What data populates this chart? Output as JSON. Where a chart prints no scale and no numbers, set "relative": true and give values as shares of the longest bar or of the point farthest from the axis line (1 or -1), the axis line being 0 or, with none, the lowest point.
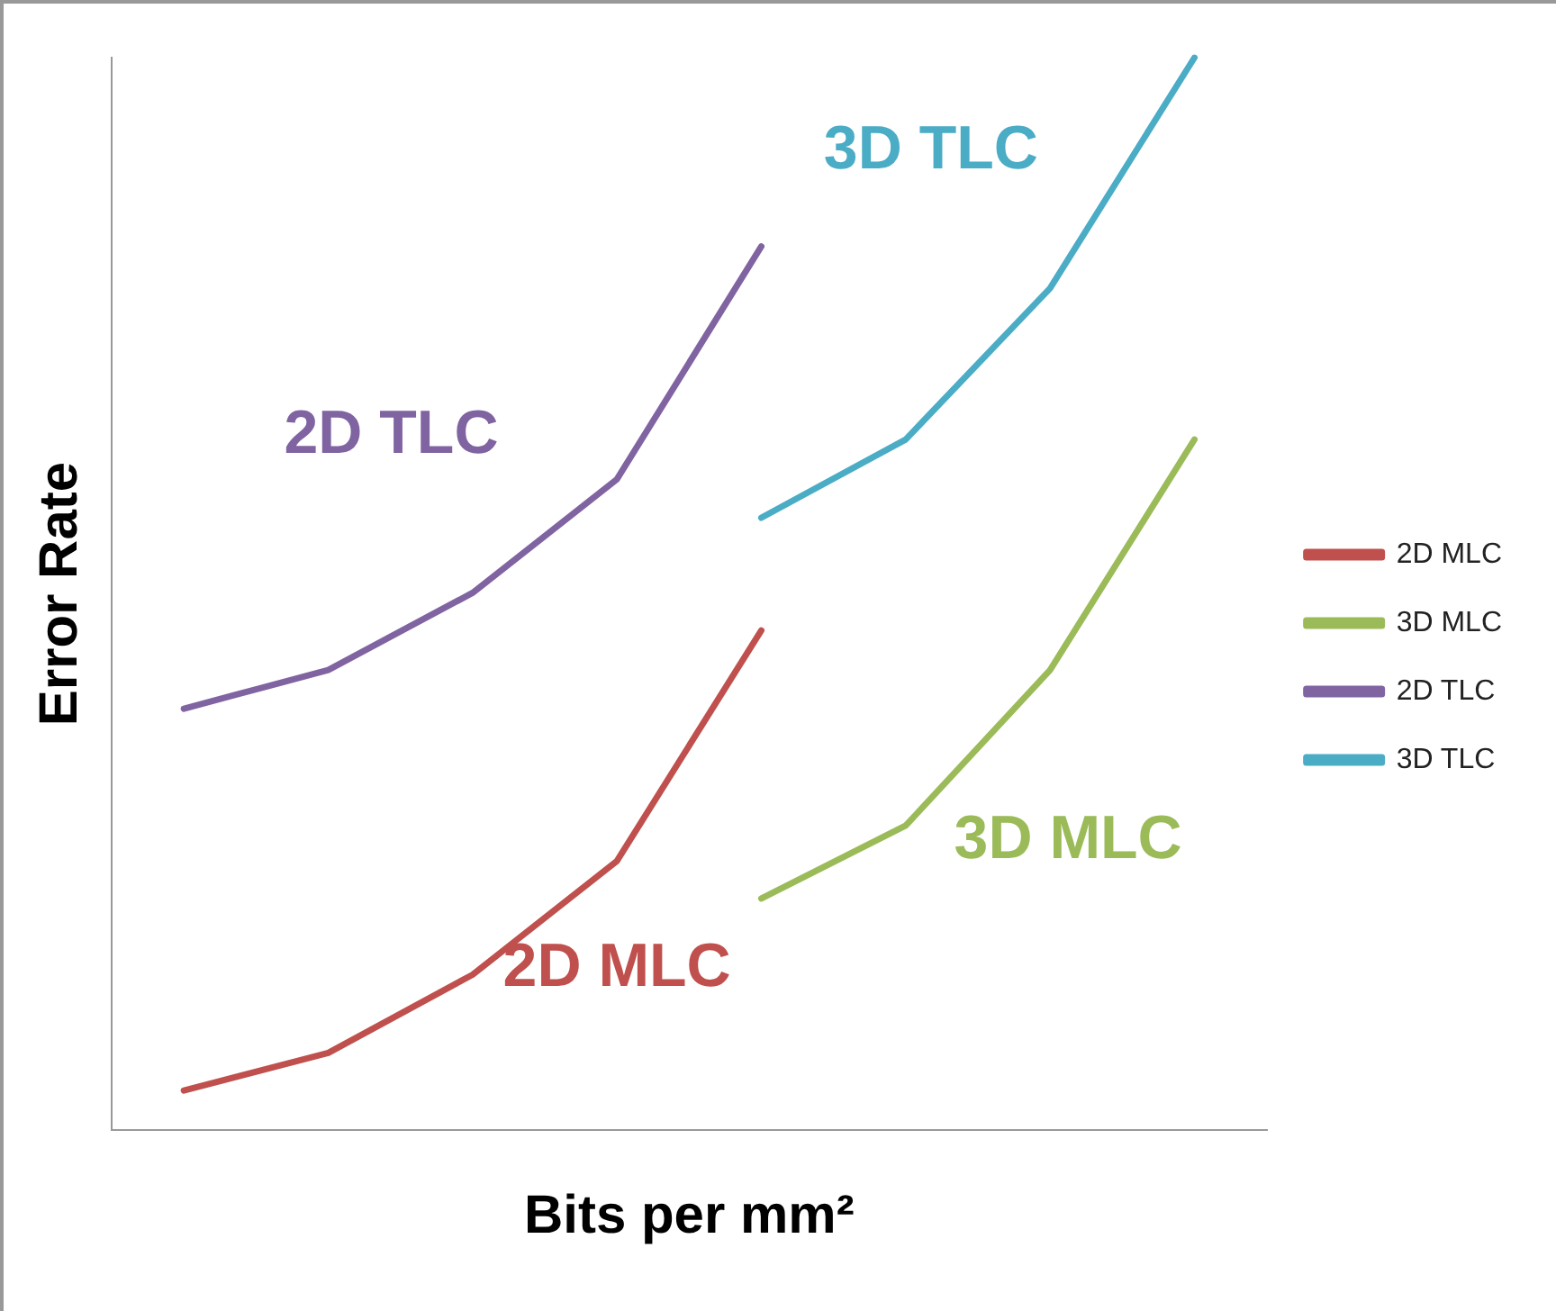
{
  "chart_data": {
    "type": "line",
    "relative": true,
    "xlabel": "Bits per mm²",
    "ylabel": "Error Rate",
    "legend": "right",
    "grid": false,
    "marker": "none",
    "line_style": "solid",
    "categories": [
      null,
      null,
      null,
      null,
      null,
      null,
      null,
      null
    ],
    "series": [
      {
        "name": "2D MLC",
        "color": "#c0504d",
        "values": [
          0.037,
          0.072,
          0.145,
          0.251,
          0.466,
          null,
          null,
          null
        ]
      },
      {
        "name": "3D MLC",
        "color": "#9bbb59",
        "values": [
          null,
          null,
          null,
          null,
          0.216,
          0.284,
          0.429,
          0.644
        ]
      },
      {
        "name": "2D TLC",
        "color": "#8064a2",
        "values": [
          0.393,
          0.429,
          0.501,
          0.607,
          0.824,
          null,
          null,
          null
        ]
      },
      {
        "name": "3D TLC",
        "color": "#4bacc6",
        "values": [
          null,
          null,
          null,
          null,
          0.571,
          0.644,
          0.785,
          1
        ]
      }
    ]
  }
}
